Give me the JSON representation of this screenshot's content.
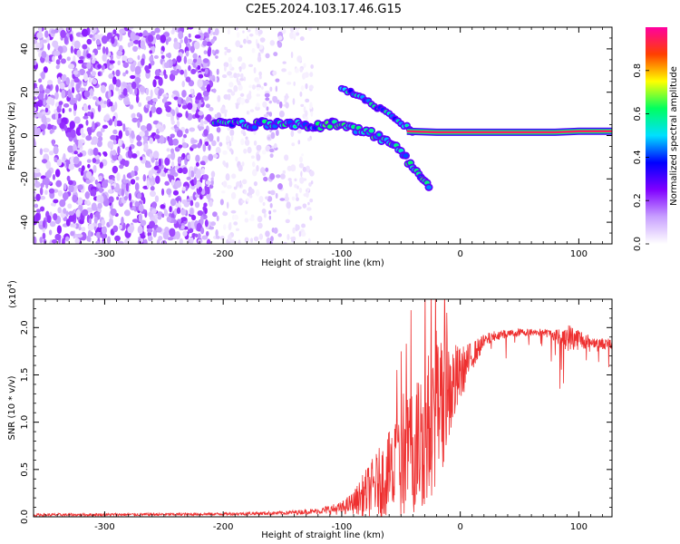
{
  "title": "C2E5.2024.103.17.46.G15",
  "chart_data": [
    {
      "type": "heatmap",
      "xlabel": "Height of straight line (km)",
      "ylabel": "Frequency (Hz)",
      "xlim": [
        -360,
        128
      ],
      "ylim": [
        -50,
        50
      ],
      "xticks": [
        -300,
        -200,
        -100,
        0,
        100
      ],
      "xtick_labels": [
        "-300",
        "-200",
        "-100",
        "0",
        "100"
      ],
      "yticks": [
        -40,
        -20,
        0,
        20,
        40
      ],
      "ytick_labels": [
        "-40",
        "-20",
        "0",
        "20",
        "40"
      ],
      "colorbar": {
        "label": "Normalized spectral amplitude",
        "range": [
          0,
          1
        ],
        "ticks": [
          0.0,
          0.2,
          0.4,
          0.6,
          0.8
        ],
        "tick_labels": [
          "0.0",
          "0.2",
          "0.4",
          "0.6",
          "0.8"
        ],
        "colors": [
          "#ffffff",
          "#c8a0ff",
          "#8000ff",
          "#0000ff",
          "#00e0ff",
          "#00ff60",
          "#ffff00",
          "#ff4000",
          "#ff00a0"
        ]
      },
      "features": [
        {
          "name": "noise region",
          "x_range": [
            -360,
            -210
          ],
          "freq_range": [
            -50,
            50
          ],
          "amplitude": 0.1
        },
        {
          "name": "sparse noise",
          "x_range": [
            -210,
            -125
          ],
          "freq_range": [
            -50,
            50
          ],
          "amplitude": 0.03
        },
        {
          "name": "main trace",
          "points": [
            [
              -207,
              7
            ],
            [
              -180,
              5
            ],
            [
              -150,
              6
            ],
            [
              -120,
              4
            ],
            [
              -100,
              6
            ],
            [
              -90,
              3
            ],
            [
              -75,
              1
            ],
            [
              -60,
              -3
            ],
            [
              -50,
              -8
            ],
            [
              -42,
              -13
            ],
            [
              -35,
              -18
            ],
            [
              -28,
              -22
            ],
            [
              -25,
              -24
            ]
          ],
          "amplitude": 0.55
        },
        {
          "name": "upper branch",
          "points": [
            [
              -100,
              22
            ],
            [
              -85,
              18
            ],
            [
              -70,
              13
            ],
            [
              -55,
              8
            ],
            [
              -45,
              4
            ],
            [
              -38,
              0
            ]
          ],
          "amplitude": 0.5
        },
        {
          "name": "carrier line",
          "points": [
            [
              -45,
              2
            ],
            [
              -20,
              1.5
            ],
            [
              0,
              1.5
            ],
            [
              50,
              1.5
            ],
            [
              80,
              1.5
            ],
            [
              100,
              2
            ],
            [
              128,
              2
            ]
          ],
          "amplitude": 0.95
        }
      ]
    },
    {
      "type": "line",
      "xlabel": "Height of straight line (km)",
      "ylabel": "SNR (10 * v/v)",
      "scale_label": "(x10",
      "scale_exponent": "4",
      "scale_suffix": ")",
      "xlim": [
        -360,
        128
      ],
      "ylim": [
        0,
        23000
      ],
      "xticks": [
        -300,
        -200,
        -100,
        0,
        100
      ],
      "xtick_labels": [
        "-300",
        "-200",
        "-100",
        "0",
        "100"
      ],
      "yticks": [
        0,
        5000,
        10000,
        15000,
        20000
      ],
      "ytick_labels": [
        "0.0",
        "0.5",
        "1.0",
        "1.5",
        "2.0"
      ],
      "color": "#ee3030",
      "envelope": {
        "x": [
          -360,
          -250,
          -200,
          -150,
          -120,
          -100,
          -90,
          -80,
          -70,
          -60,
          -50,
          -40,
          -30,
          -20,
          -10,
          0,
          10,
          20,
          30,
          50,
          70,
          80,
          90,
          100,
          110,
          120,
          128
        ],
        "y": [
          200,
          250,
          300,
          400,
          600,
          900,
          1500,
          2500,
          3500,
          4500,
          5500,
          7000,
          9000,
          11000,
          13000,
          15000,
          17000,
          18500,
          19200,
          19500,
          19500,
          19200,
          19000,
          18800,
          18500,
          18300,
          18200
        ],
        "noise": [
          150,
          150,
          150,
          200,
          300,
          700,
          1200,
          2500,
          3500,
          4500,
          6000,
          7000,
          8000,
          8000,
          6000,
          3000,
          1500,
          800,
          500,
          400,
          400,
          600,
          1500,
          1200,
          600,
          600,
          600
        ]
      }
    }
  ]
}
